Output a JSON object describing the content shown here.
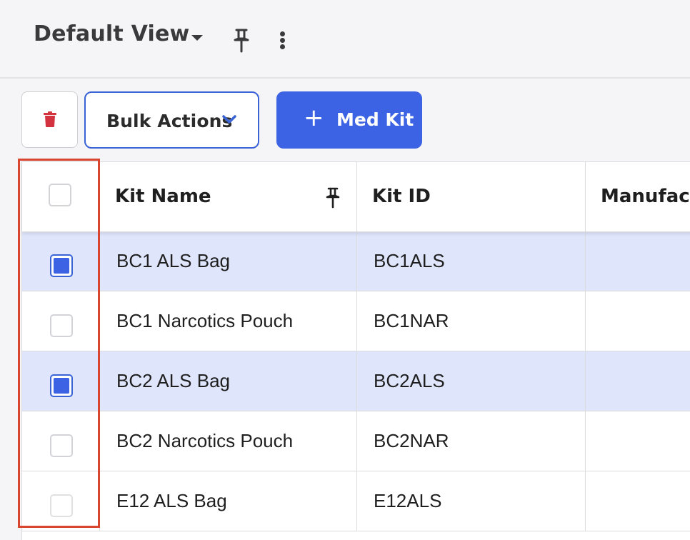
{
  "header": {
    "view_title": "Default View",
    "icons": [
      "chevron-down-icon",
      "pin-icon",
      "kebab-menu-icon"
    ]
  },
  "toolbar": {
    "delete_icon": "trash-icon",
    "bulk_actions_label": "Bulk Actions",
    "add_plus": "+",
    "add_label": "Med Kit"
  },
  "table": {
    "columns": {
      "name": "Kit Name",
      "id": "Kit ID",
      "manufacturer": "Manufact"
    },
    "rows": [
      {
        "name": "BC1 ALS Bag",
        "id": "BC1ALS",
        "manufacturer": "",
        "selected": true
      },
      {
        "name": "BC1 Narcotics Pouch",
        "id": "BC1NAR",
        "manufacturer": "",
        "selected": false
      },
      {
        "name": "BC2 ALS Bag",
        "id": "BC2ALS",
        "manufacturer": "",
        "selected": true
      },
      {
        "name": "BC2 Narcotics Pouch",
        "id": "BC2NAR",
        "manufacturer": "",
        "selected": false
      },
      {
        "name": "E12 ALS Bag",
        "id": "E12ALS",
        "manufacturer": "",
        "selected": false
      }
    ]
  },
  "colors": {
    "accent": "#3c63e3",
    "selected_row": "#dfe5fb",
    "delete_icon": "#d3323f",
    "highlight": "#d9452f"
  }
}
